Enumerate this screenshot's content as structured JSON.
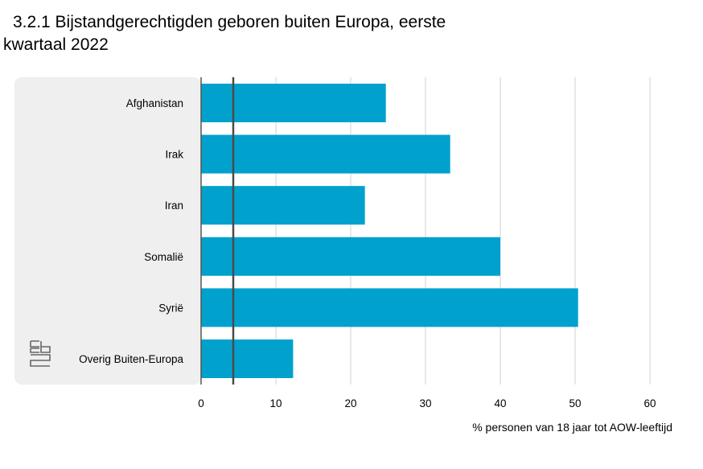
{
  "title_line1": "3.2.1 Bijstandgerechtigden geboren buiten Europa, eerste",
  "title_line2": "kwartaal 2022",
  "logo_icon": "cbs-logo-icon",
  "colors": {
    "bar": "#00a1cd",
    "panel": "#efefef",
    "grid": "#d0d0d0",
    "axis": "#555555",
    "reference": "#4a4a4a"
  },
  "chart_data": {
    "type": "bar",
    "orientation": "horizontal",
    "categories": [
      "Afghanistan",
      "Irak",
      "Iran",
      "Somalië",
      "Syrië",
      "Overig Buiten-Europa"
    ],
    "values": [
      24.7,
      33.3,
      21.9,
      40.0,
      50.4,
      12.3
    ],
    "reference_line": 4.3,
    "xlabel": "% personen van 18 jaar tot AOW-leeftijd",
    "xlim": [
      0,
      60
    ],
    "xticks": [
      0,
      10,
      20,
      30,
      40,
      50,
      60
    ],
    "grid": true
  }
}
